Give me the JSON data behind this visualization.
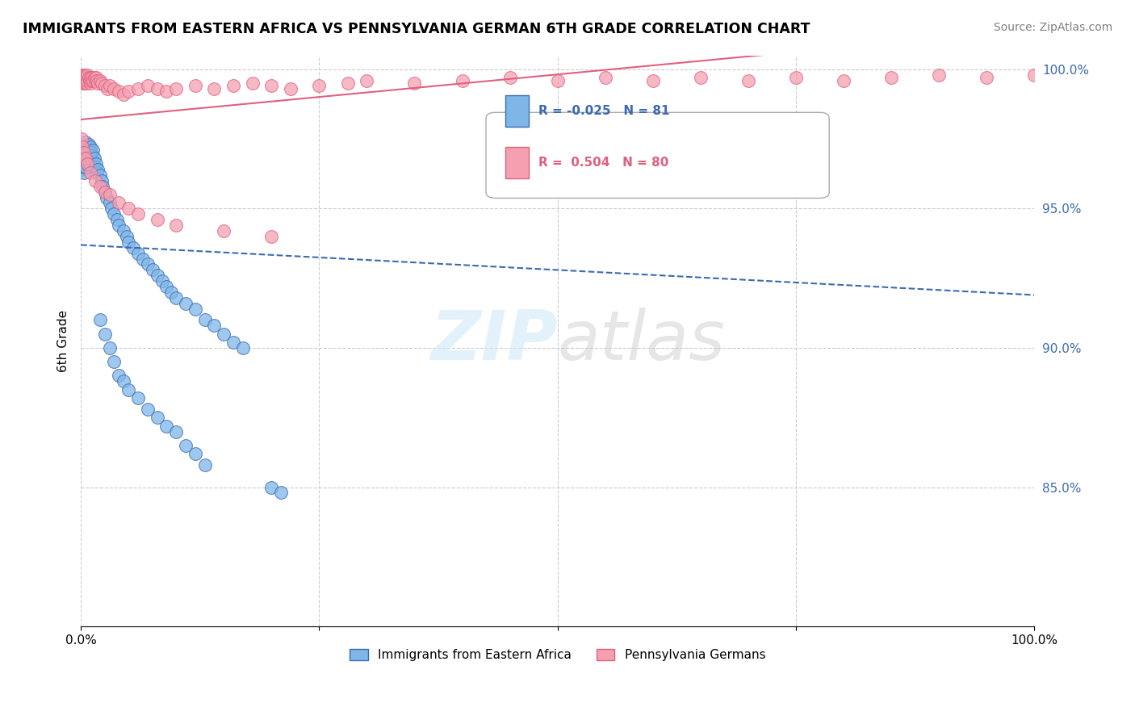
{
  "title": "IMMIGRANTS FROM EASTERN AFRICA VS PENNSYLVANIA GERMAN 6TH GRADE CORRELATION CHART",
  "source": "Source: ZipAtlas.com",
  "ylabel": "6th Grade",
  "xlim": [
    0.0,
    1.0
  ],
  "ylim": [
    0.8,
    1.005
  ],
  "yticks": [
    0.85,
    0.9,
    0.95,
    1.0
  ],
  "ytick_labels": [
    "85.0%",
    "90.0%",
    "95.0%",
    "100.0%"
  ],
  "xticks": [
    0.0,
    0.25,
    0.5,
    0.75,
    1.0
  ],
  "xtick_labels": [
    "0.0%",
    "",
    "",
    "",
    "100.0%"
  ],
  "legend_labels": [
    "Immigrants from Eastern Africa",
    "Pennsylvania Germans"
  ],
  "R_blue": -0.025,
  "N_blue": 81,
  "R_pink": 0.504,
  "N_pink": 80,
  "blue_color": "#7eb6e8",
  "pink_color": "#f4a0b0",
  "blue_line_color": "#3c6ab0",
  "pink_line_color": "#e06080",
  "blue_scatter": [
    [
      0.001,
      0.97
    ],
    [
      0.001,
      0.968
    ],
    [
      0.001,
      0.966
    ],
    [
      0.001,
      0.964
    ],
    [
      0.002,
      0.972
    ],
    [
      0.002,
      0.968
    ],
    [
      0.002,
      0.965
    ],
    [
      0.003,
      0.97
    ],
    [
      0.003,
      0.967
    ],
    [
      0.003,
      0.963
    ],
    [
      0.004,
      0.971
    ],
    [
      0.004,
      0.968
    ],
    [
      0.004,
      0.965
    ],
    [
      0.005,
      0.974
    ],
    [
      0.005,
      0.969
    ],
    [
      0.005,
      0.965
    ],
    [
      0.006,
      0.972
    ],
    [
      0.006,
      0.968
    ],
    [
      0.007,
      0.97
    ],
    [
      0.007,
      0.966
    ],
    [
      0.008,
      0.973
    ],
    [
      0.008,
      0.969
    ],
    [
      0.009,
      0.971
    ],
    [
      0.009,
      0.966
    ],
    [
      0.01,
      0.972
    ],
    [
      0.01,
      0.968
    ],
    [
      0.011,
      0.97
    ],
    [
      0.012,
      0.969
    ],
    [
      0.013,
      0.971
    ],
    [
      0.014,
      0.968
    ],
    [
      0.015,
      0.965
    ],
    [
      0.016,
      0.966
    ],
    [
      0.017,
      0.963
    ],
    [
      0.018,
      0.964
    ],
    [
      0.02,
      0.962
    ],
    [
      0.022,
      0.96
    ],
    [
      0.023,
      0.958
    ],
    [
      0.025,
      0.956
    ],
    [
      0.027,
      0.954
    ],
    [
      0.03,
      0.952
    ],
    [
      0.032,
      0.95
    ],
    [
      0.035,
      0.948
    ],
    [
      0.038,
      0.946
    ],
    [
      0.04,
      0.944
    ],
    [
      0.045,
      0.942
    ],
    [
      0.048,
      0.94
    ],
    [
      0.05,
      0.938
    ],
    [
      0.055,
      0.936
    ],
    [
      0.06,
      0.934
    ],
    [
      0.065,
      0.932
    ],
    [
      0.07,
      0.93
    ],
    [
      0.075,
      0.928
    ],
    [
      0.08,
      0.926
    ],
    [
      0.085,
      0.924
    ],
    [
      0.09,
      0.922
    ],
    [
      0.095,
      0.92
    ],
    [
      0.1,
      0.918
    ],
    [
      0.11,
      0.916
    ],
    [
      0.12,
      0.914
    ],
    [
      0.13,
      0.91
    ],
    [
      0.14,
      0.908
    ],
    [
      0.15,
      0.905
    ],
    [
      0.16,
      0.902
    ],
    [
      0.17,
      0.9
    ],
    [
      0.02,
      0.91
    ],
    [
      0.025,
      0.905
    ],
    [
      0.03,
      0.9
    ],
    [
      0.035,
      0.895
    ],
    [
      0.04,
      0.89
    ],
    [
      0.045,
      0.888
    ],
    [
      0.05,
      0.885
    ],
    [
      0.06,
      0.882
    ],
    [
      0.07,
      0.878
    ],
    [
      0.08,
      0.875
    ],
    [
      0.09,
      0.872
    ],
    [
      0.1,
      0.87
    ],
    [
      0.11,
      0.865
    ],
    [
      0.12,
      0.862
    ],
    [
      0.13,
      0.858
    ],
    [
      0.2,
      0.85
    ],
    [
      0.21,
      0.848
    ]
  ],
  "pink_scatter": [
    [
      0.001,
      0.998
    ],
    [
      0.001,
      0.996
    ],
    [
      0.002,
      0.997
    ],
    [
      0.002,
      0.995
    ],
    [
      0.003,
      0.998
    ],
    [
      0.003,
      0.996
    ],
    [
      0.004,
      0.997
    ],
    [
      0.004,
      0.995
    ],
    [
      0.005,
      0.998
    ],
    [
      0.005,
      0.996
    ],
    [
      0.006,
      0.997
    ],
    [
      0.006,
      0.995
    ],
    [
      0.007,
      0.998
    ],
    [
      0.007,
      0.996
    ],
    [
      0.008,
      0.997
    ],
    [
      0.009,
      0.996
    ],
    [
      0.01,
      0.997
    ],
    [
      0.01,
      0.995
    ],
    [
      0.011,
      0.996
    ],
    [
      0.012,
      0.997
    ],
    [
      0.013,
      0.996
    ],
    [
      0.014,
      0.997
    ],
    [
      0.015,
      0.996
    ],
    [
      0.016,
      0.997
    ],
    [
      0.017,
      0.996
    ],
    [
      0.018,
      0.995
    ],
    [
      0.02,
      0.996
    ],
    [
      0.022,
      0.995
    ],
    [
      0.025,
      0.994
    ],
    [
      0.028,
      0.993
    ],
    [
      0.03,
      0.994
    ],
    [
      0.035,
      0.993
    ],
    [
      0.04,
      0.992
    ],
    [
      0.045,
      0.991
    ],
    [
      0.05,
      0.992
    ],
    [
      0.06,
      0.993
    ],
    [
      0.07,
      0.994
    ],
    [
      0.08,
      0.993
    ],
    [
      0.09,
      0.992
    ],
    [
      0.1,
      0.993
    ],
    [
      0.12,
      0.994
    ],
    [
      0.14,
      0.993
    ],
    [
      0.16,
      0.994
    ],
    [
      0.18,
      0.995
    ],
    [
      0.2,
      0.994
    ],
    [
      0.22,
      0.993
    ],
    [
      0.25,
      0.994
    ],
    [
      0.28,
      0.995
    ],
    [
      0.3,
      0.996
    ],
    [
      0.35,
      0.995
    ],
    [
      0.4,
      0.996
    ],
    [
      0.45,
      0.997
    ],
    [
      0.5,
      0.996
    ],
    [
      0.55,
      0.997
    ],
    [
      0.6,
      0.996
    ],
    [
      0.65,
      0.997
    ],
    [
      0.7,
      0.996
    ],
    [
      0.75,
      0.997
    ],
    [
      0.8,
      0.996
    ],
    [
      0.85,
      0.997
    ],
    [
      0.9,
      0.998
    ],
    [
      0.95,
      0.997
    ],
    [
      1.0,
      0.998
    ],
    [
      0.001,
      0.975
    ],
    [
      0.002,
      0.972
    ],
    [
      0.003,
      0.97
    ],
    [
      0.005,
      0.968
    ],
    [
      0.007,
      0.966
    ],
    [
      0.01,
      0.963
    ],
    [
      0.015,
      0.96
    ],
    [
      0.02,
      0.958
    ],
    [
      0.025,
      0.956
    ],
    [
      0.03,
      0.955
    ],
    [
      0.04,
      0.952
    ],
    [
      0.05,
      0.95
    ],
    [
      0.06,
      0.948
    ],
    [
      0.08,
      0.946
    ],
    [
      0.1,
      0.944
    ],
    [
      0.15,
      0.942
    ],
    [
      0.2,
      0.94
    ]
  ]
}
